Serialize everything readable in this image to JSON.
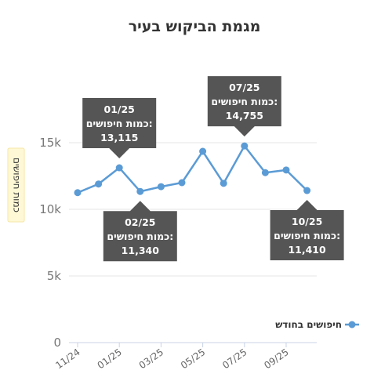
{
  "chart_data": {
    "type": "line",
    "title": "מגמת הביקוש בעיר",
    "ylabel": "כמות חיפושים",
    "xlabel": "",
    "x": [
      "11/24",
      "12/24",
      "01/25",
      "02/25",
      "03/25",
      "04/25",
      "05/25",
      "06/25",
      "07/25",
      "08/25",
      "09/25",
      "10/25"
    ],
    "xticks": [
      "11/24",
      "01/25",
      "03/25",
      "05/25",
      "07/25",
      "09/25"
    ],
    "yticks": [
      {
        "value": 0,
        "label": "0"
      },
      {
        "value": 5000,
        "label": "5k"
      },
      {
        "value": 10000,
        "label": "10k"
      },
      {
        "value": 15000,
        "label": "15k"
      }
    ],
    "ylim": [
      0,
      17000
    ],
    "grid": true,
    "legend_position": "right",
    "series": [
      {
        "name": "חיפושים בחודש",
        "color": "#5b9bd5",
        "values": [
          11250,
          11900,
          13115,
          11340,
          11700,
          12000,
          14350,
          11950,
          14755,
          12750,
          12950,
          11410
        ]
      }
    ],
    "annotations": [
      {
        "index": 2,
        "date": "01/25",
        "label": "כמות חיפושים:",
        "value": "13,115",
        "placement": "above"
      },
      {
        "index": 3,
        "date": "02/25",
        "label": "כמות חיפושים:",
        "value": "11,340",
        "placement": "below"
      },
      {
        "index": 8,
        "date": "07/25",
        "label": "כמות חיפושים:",
        "value": "14,755",
        "placement": "above"
      },
      {
        "index": 11,
        "date": "10/25",
        "label": "כמות חיפושים:",
        "value": "11,410",
        "placement": "below"
      }
    ]
  }
}
